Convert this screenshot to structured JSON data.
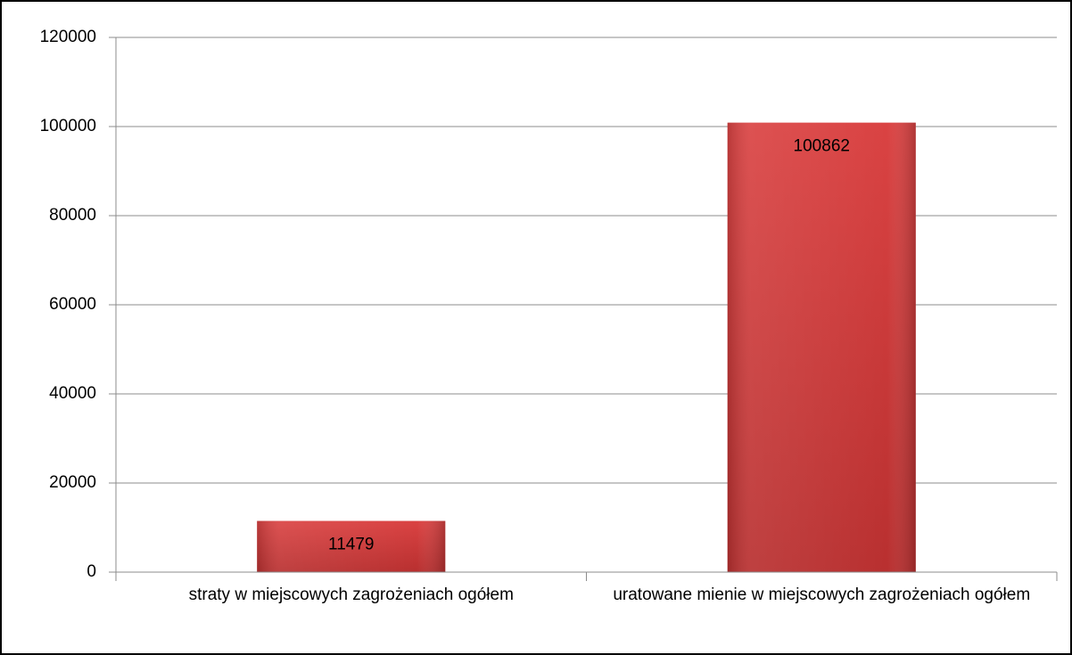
{
  "chart_data": {
    "type": "bar",
    "categories": [
      "straty w miejscowych zagrożeniach ogółem",
      "uratowane mienie w miejscowych zagrożeniach ogółem"
    ],
    "values": [
      11479,
      100862
    ],
    "color": "#d13b3b",
    "ylim": [
      0,
      120000
    ],
    "yticks": [
      0,
      20000,
      40000,
      60000,
      80000,
      100000,
      120000
    ],
    "grid": true
  }
}
